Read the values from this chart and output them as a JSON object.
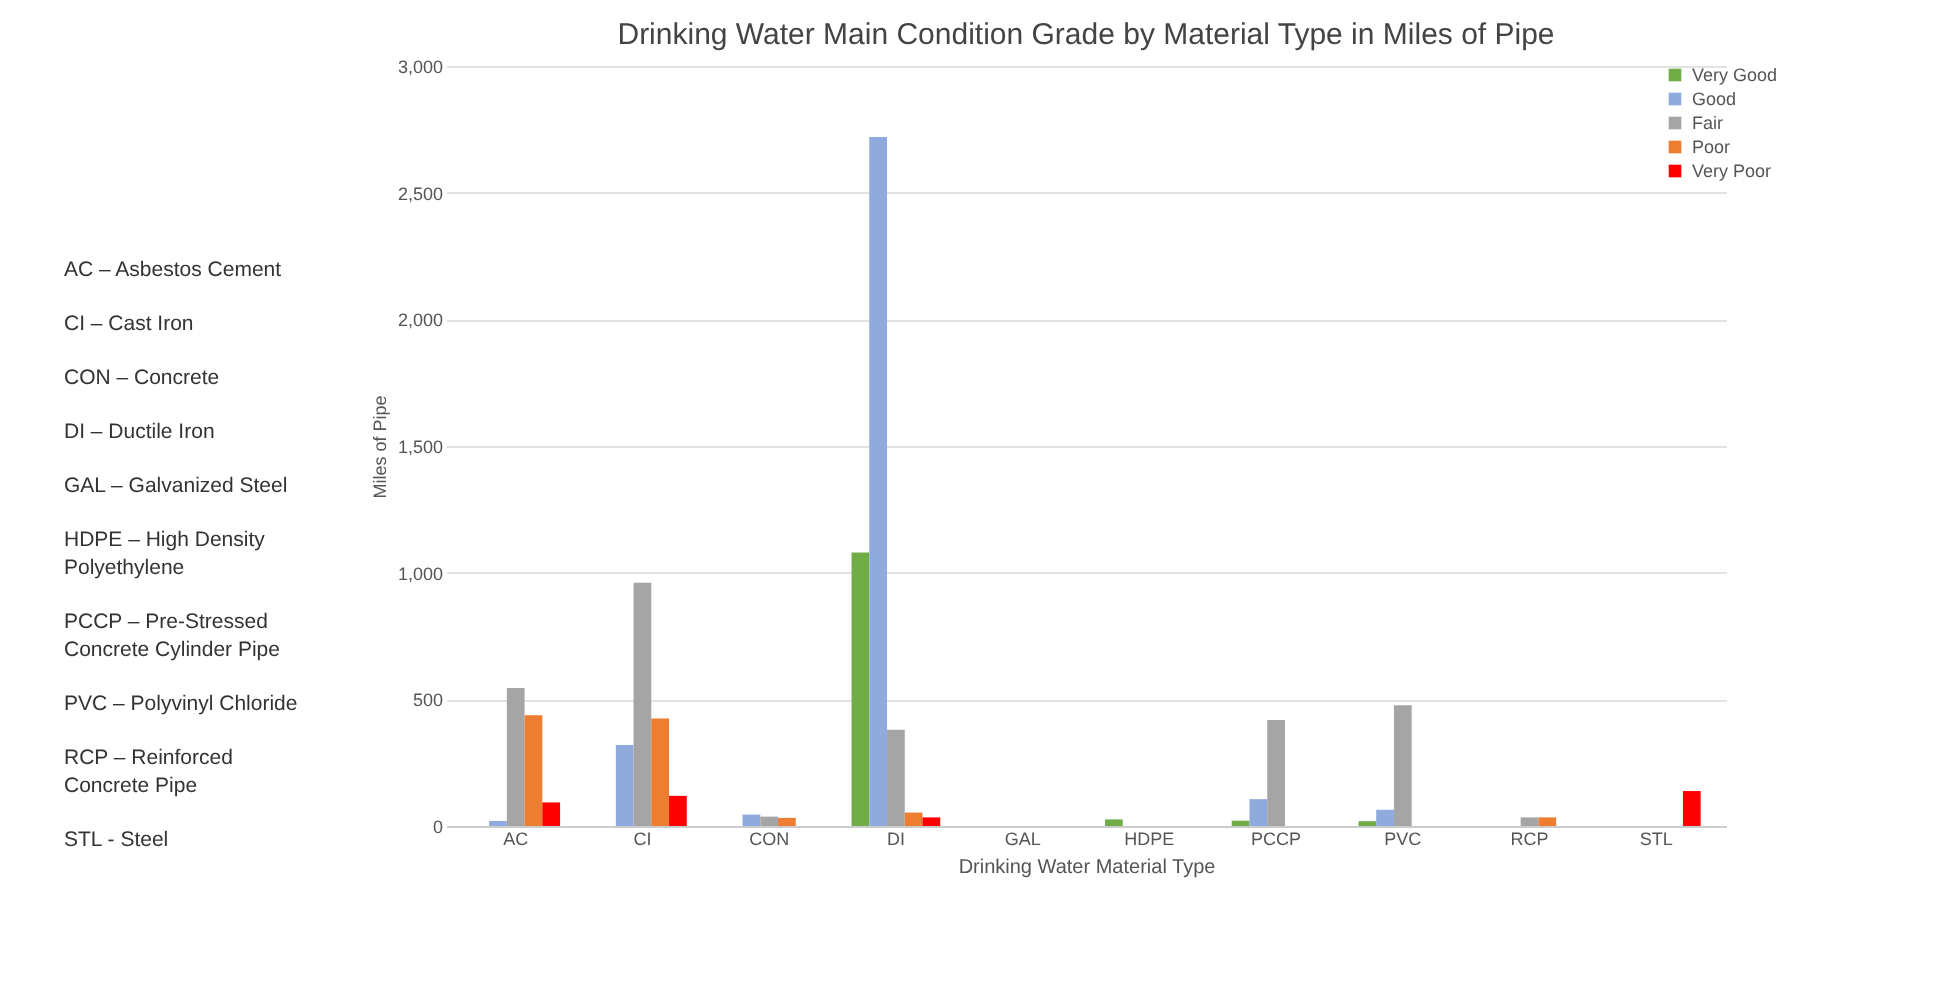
{
  "chart_data": {
    "type": "bar",
    "title": "Drinking Water Main Condition Grade by Material Type in Miles of Pipe",
    "xlabel": "Drinking Water Material Type",
    "ylabel": "Miles of Pipe",
    "categories": [
      "AC",
      "CI",
      "CON",
      "DI",
      "GAL",
      "HDPE",
      "PCCP",
      "PVC",
      "RCP",
      "STL"
    ],
    "series": [
      {
        "name": "Very Good",
        "color": "#70ad47",
        "values": [
          null,
          null,
          null,
          1080,
          null,
          26,
          21,
          19,
          null,
          null
        ]
      },
      {
        "name": "Good",
        "color": "#8faadc",
        "values": [
          20,
          320,
          45,
          2720,
          null,
          null,
          106,
          64,
          null,
          null
        ]
      },
      {
        "name": "Fair",
        "color": "#a5a5a5",
        "values": [
          545,
          960,
          37,
          380,
          null,
          null,
          418,
          477,
          34,
          null
        ]
      },
      {
        "name": "Poor",
        "color": "#ed7d31",
        "values": [
          437,
          424,
          32,
          53,
          null,
          null,
          null,
          null,
          34,
          null
        ]
      },
      {
        "name": "Very Poor",
        "color": "#ff0000",
        "values": [
          93,
          119,
          null,
          34,
          null,
          null,
          null,
          null,
          null,
          138
        ]
      }
    ],
    "ylim": [
      0,
      3000
    ],
    "yticks": [
      0,
      500,
      {
        "value": 1000,
        "label": "1,000"
      },
      {
        "value": 1500,
        "label": "1,500"
      },
      {
        "value": 2000,
        "label": "2,000"
      },
      {
        "value": 2500,
        "label": "2,500"
      },
      {
        "value": 3000,
        "label": "3,000"
      }
    ],
    "grid": "y",
    "legend": "right",
    "annotations": [
      "AC – Asbestos Cement",
      "CI – Cast Iron",
      "CON – Concrete",
      "DI – Ductile Iron",
      "GAL – Galvanized Steel",
      "HDPE – High Density Polyethylene",
      "PCCP – Pre-Stressed Concrete Cylinder Pipe",
      "PVC – Polyvinyl Chloride",
      "RCP – Reinforced Concrete Pipe",
      "STL - Steel"
    ]
  }
}
